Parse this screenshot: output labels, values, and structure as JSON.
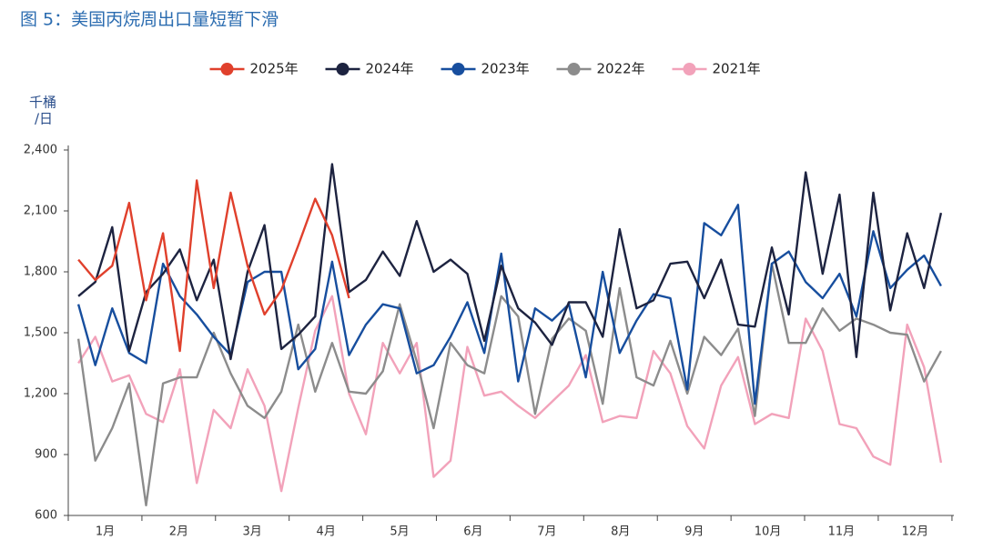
{
  "chart_data": {
    "type": "line",
    "title": "图 5：美国丙烷周出口量短暂下滑",
    "y_label_lines": [
      "千桶",
      "/日"
    ],
    "xlim": [
      0.4,
      52.6
    ],
    "xticks": [
      {
        "value": 2.58,
        "label": "1月"
      },
      {
        "value": 6.93,
        "label": "2月"
      },
      {
        "value": 11.28,
        "label": "3月"
      },
      {
        "value": 15.64,
        "label": "4月"
      },
      {
        "value": 19.99,
        "label": "5月"
      },
      {
        "value": 24.34,
        "label": "6月"
      },
      {
        "value": 28.7,
        "label": "7月"
      },
      {
        "value": 33.05,
        "label": "8月"
      },
      {
        "value": 37.41,
        "label": "9月"
      },
      {
        "value": 41.76,
        "label": "10月"
      },
      {
        "value": 46.11,
        "label": "11月"
      },
      {
        "value": 50.47,
        "label": "12月"
      }
    ],
    "ylim": [
      600,
      2400
    ],
    "yticks": [
      600,
      900,
      {
        "value": 1200,
        "label": "1,200"
      },
      {
        "value": 1500,
        "label": "1,500"
      },
      {
        "value": 1800,
        "label": "1,800"
      },
      {
        "value": 2100,
        "label": "2,100"
      },
      {
        "value": 2400,
        "label": "2,400"
      }
    ],
    "x": [
      1,
      2,
      3,
      4,
      5,
      6,
      7,
      8,
      9,
      10,
      11,
      12,
      13,
      14,
      15,
      16,
      17,
      18,
      19,
      20,
      21,
      22,
      23,
      24,
      25,
      26,
      27,
      28,
      29,
      30,
      31,
      32,
      33,
      34,
      35,
      36,
      37,
      38,
      39,
      40,
      41,
      42,
      43,
      44,
      45,
      46,
      47,
      48,
      49,
      50,
      51,
      52
    ],
    "series": [
      {
        "name": "2025年",
        "color": "#e0402c",
        "values": [
          1860,
          1760,
          1830,
          2140,
          1660,
          1990,
          1410,
          2250,
          1720,
          2190,
          1830,
          1590,
          1710,
          1930,
          2160,
          1980,
          1670,
          null,
          null,
          null,
          null,
          null,
          null,
          null,
          null,
          null,
          null,
          null,
          null,
          null,
          null,
          null,
          null,
          null,
          null,
          null,
          null,
          null,
          null,
          null,
          null,
          null,
          null,
          null,
          null,
          null,
          null,
          null,
          null,
          null,
          null,
          null
        ]
      },
      {
        "name": "2024年",
        "color": "#1d2340",
        "values": [
          1680,
          1750,
          2020,
          1410,
          1700,
          1790,
          1910,
          1660,
          1860,
          1370,
          1800,
          2030,
          1420,
          1490,
          1580,
          2330,
          1700,
          1760,
          1900,
          1780,
          2050,
          1800,
          1860,
          1790,
          1460,
          1830,
          1620,
          1550,
          1440,
          1650,
          1650,
          1480,
          2010,
          1620,
          1660,
          1840,
          1850,
          1670,
          1860,
          1540,
          1530,
          1920,
          1590,
          2290,
          1790,
          2180,
          1380,
          2190,
          1610,
          1990,
          1720,
          2090
        ]
      },
      {
        "name": "2023年",
        "color": "#174e9e",
        "values": [
          1640,
          1340,
          1620,
          1400,
          1350,
          1840,
          1680,
          1590,
          1480,
          1390,
          1750,
          1800,
          1800,
          1320,
          1420,
          1850,
          1390,
          1540,
          1640,
          1620,
          1300,
          1340,
          1480,
          1650,
          1400,
          1890,
          1260,
          1620,
          1560,
          1640,
          1280,
          1800,
          1400,
          1560,
          1690,
          1670,
          1220,
          2040,
          1980,
          2130,
          1150,
          1840,
          1900,
          1750,
          1670,
          1790,
          1580,
          2000,
          1720,
          1810,
          1880,
          1730
        ]
      },
      {
        "name": "2022年",
        "color": "#8c8c8c",
        "values": [
          1470,
          870,
          1030,
          1250,
          650,
          1250,
          1280,
          1280,
          1500,
          1300,
          1140,
          1080,
          1210,
          1540,
          1210,
          1450,
          1210,
          1200,
          1310,
          1640,
          1360,
          1030,
          1450,
          1340,
          1300,
          1680,
          1580,
          1100,
          1470,
          1570,
          1510,
          1150,
          1720,
          1280,
          1240,
          1460,
          1200,
          1480,
          1390,
          1520,
          1090,
          1840,
          1450,
          1450,
          1620,
          1510,
          1570,
          1540,
          1500,
          1490,
          1260,
          1410
        ]
      },
      {
        "name": "2021年",
        "color": "#f2a2ba",
        "values": [
          1350,
          1480,
          1260,
          1290,
          1100,
          1060,
          1320,
          760,
          1120,
          1030,
          1320,
          1140,
          720,
          1130,
          1510,
          1680,
          1200,
          1000,
          1450,
          1300,
          1450,
          790,
          870,
          1430,
          1190,
          1210,
          1140,
          1080,
          1160,
          1240,
          1390,
          1060,
          1090,
          1080,
          1410,
          1300,
          1040,
          930,
          1240,
          1380,
          1050,
          1100,
          1080,
          1570,
          1410,
          1050,
          1030,
          890,
          850,
          1540,
          1330,
          860
        ]
      }
    ],
    "legend": "top",
    "grid": false
  }
}
